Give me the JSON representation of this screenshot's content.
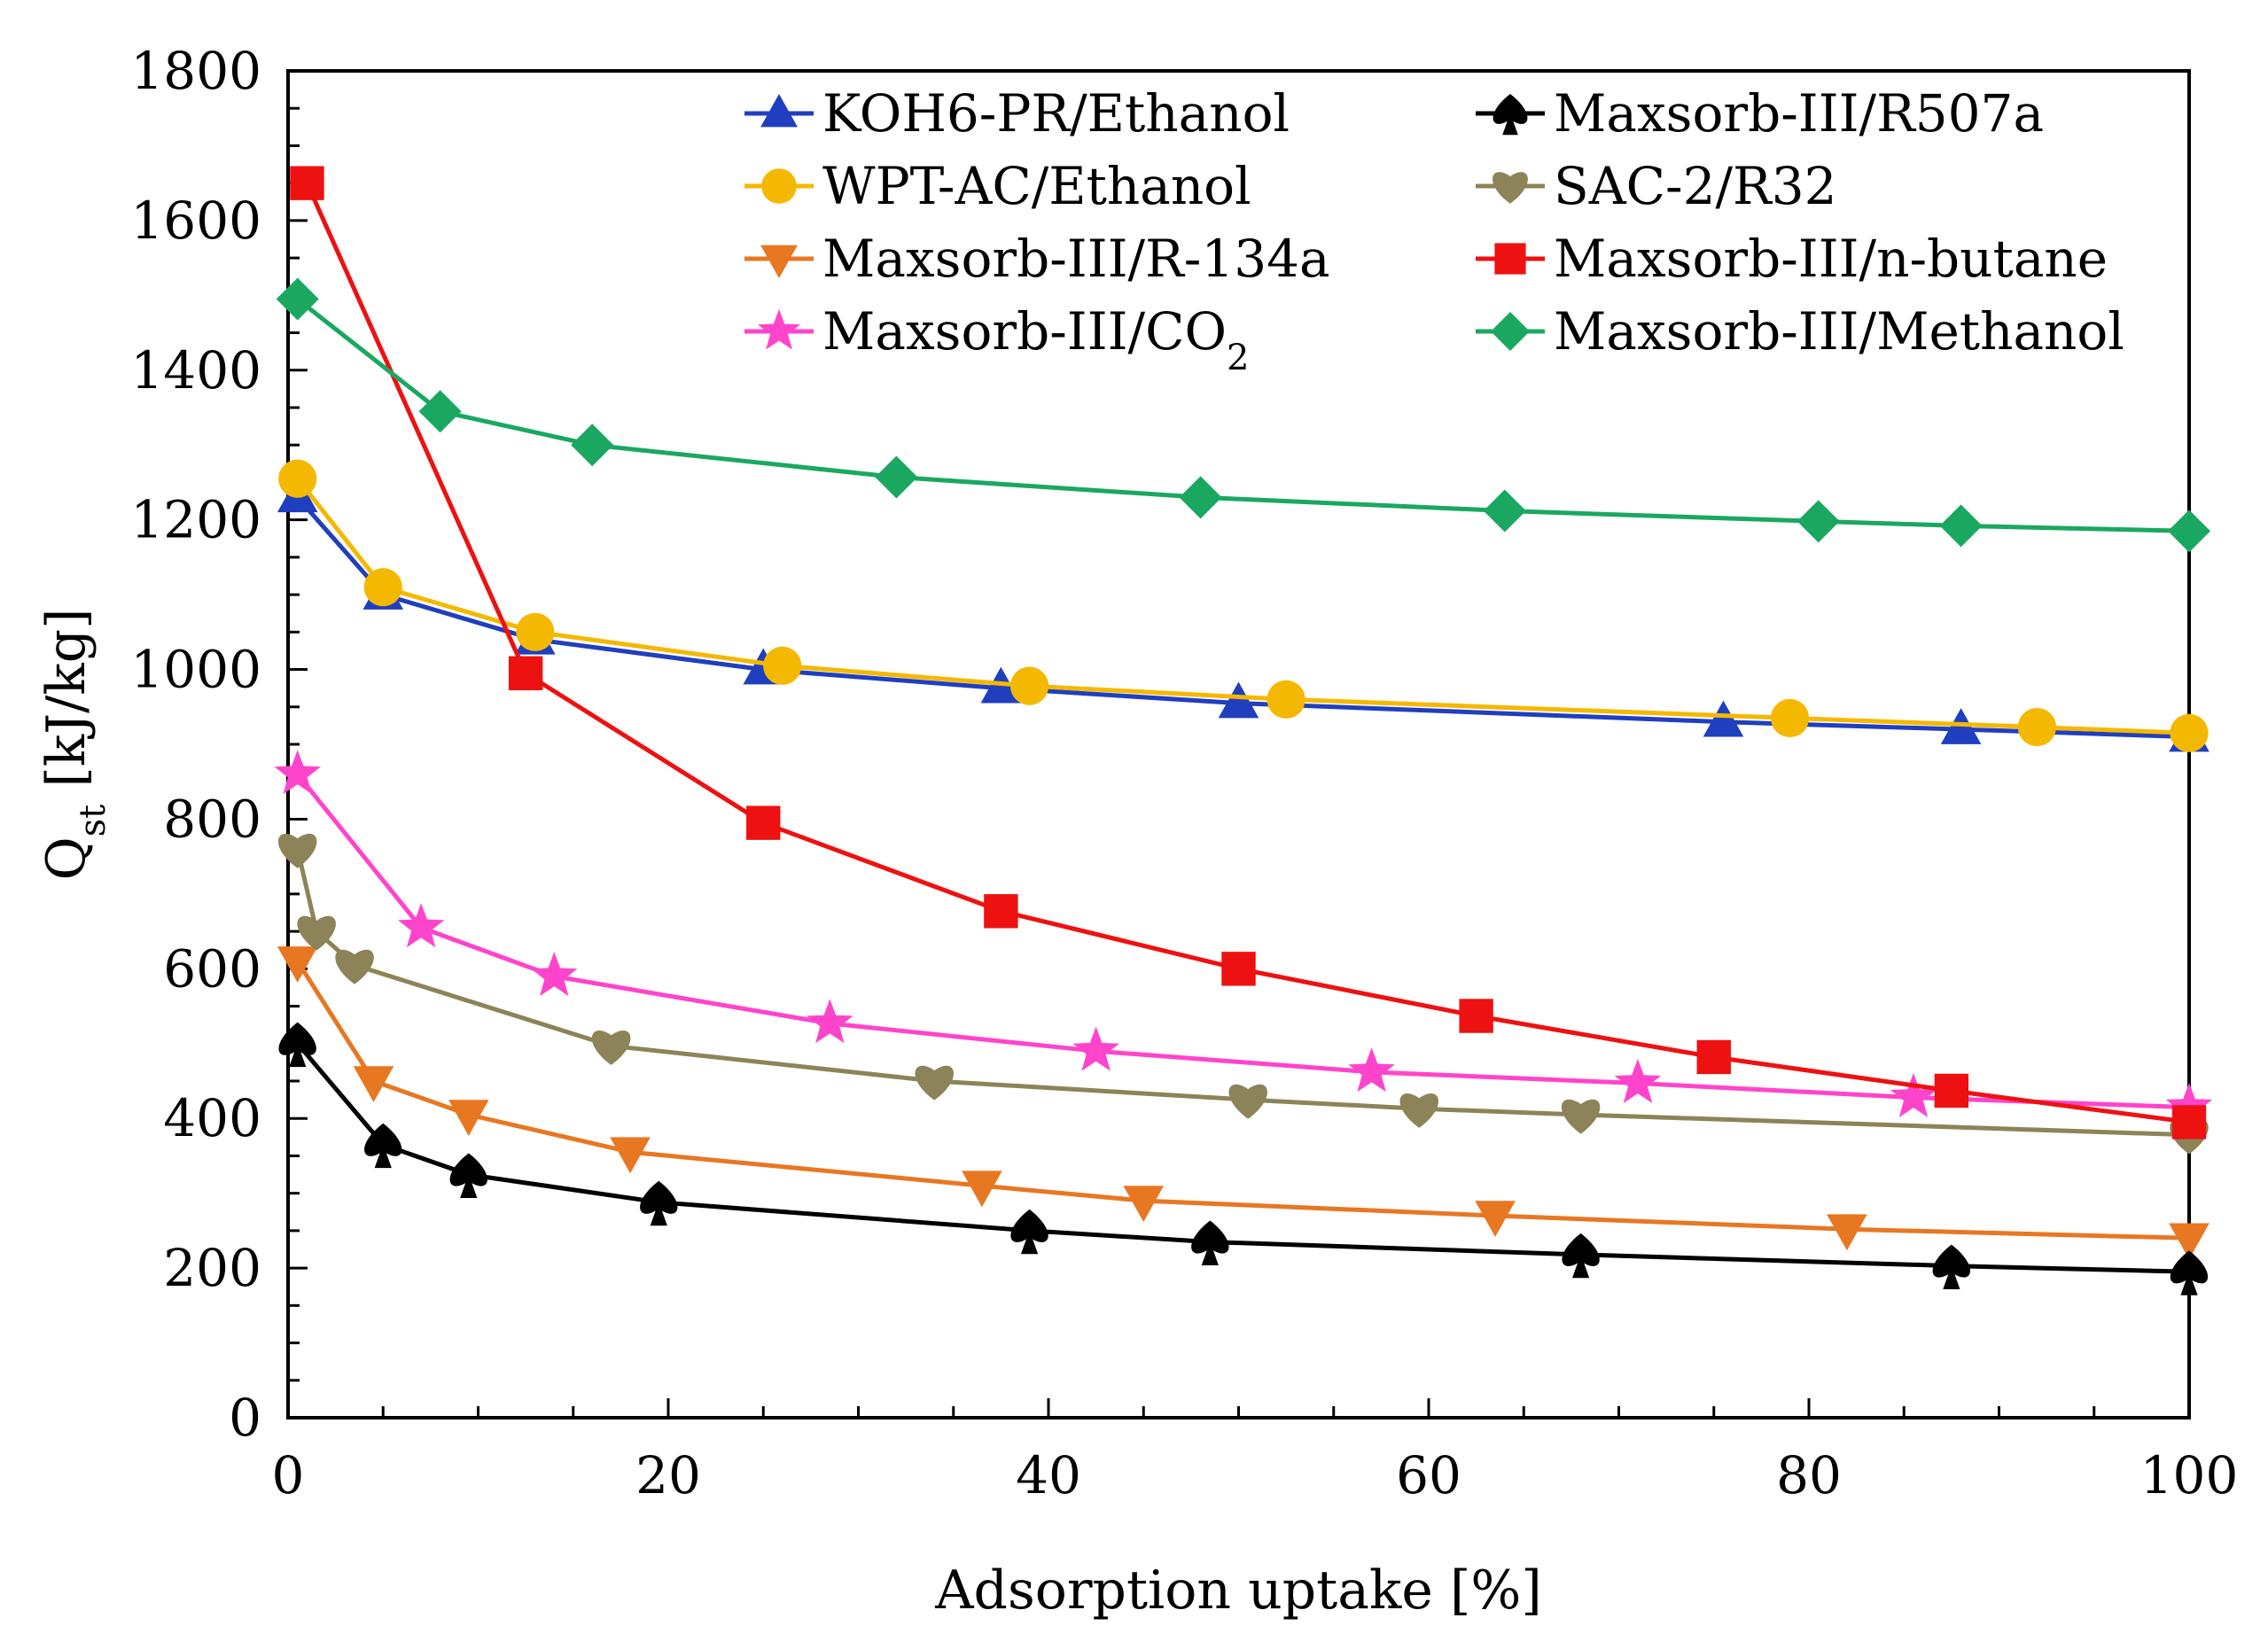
{
  "chart_data": {
    "type": "line",
    "xlabel": "Adsorption uptake [%]",
    "ylabel_main": "Q",
    "ylabel_sub": "st",
    "ylabel_unit": " [kJ/kg]",
    "xlim": [
      0,
      100
    ],
    "ylim": [
      0,
      1800
    ],
    "x_ticks": [
      0,
      20,
      40,
      60,
      80,
      100
    ],
    "y_ticks": [
      0,
      200,
      400,
      600,
      800,
      1000,
      1200,
      1400,
      1600,
      1800
    ],
    "x_minor_step": 5,
    "y_minor_step": 50,
    "grid": false,
    "legend_position": "top-right",
    "series": [
      {
        "name": "KOH6-PR/Ethanol",
        "color": "#1f3fbf",
        "marker": "triangle-up",
        "points": [
          [
            0.5,
            1230
          ],
          [
            5,
            1100
          ],
          [
            13,
            1040
          ],
          [
            25,
            1000
          ],
          [
            37.5,
            975
          ],
          [
            50,
            955
          ],
          [
            75.5,
            930
          ],
          [
            88,
            920
          ],
          [
            100,
            910
          ]
        ]
      },
      {
        "name": "WPT-AC/Ethanol",
        "color": "#f5b800",
        "marker": "circle",
        "points": [
          [
            0.5,
            1255
          ],
          [
            5,
            1110
          ],
          [
            13,
            1050
          ],
          [
            26,
            1005
          ],
          [
            39,
            978
          ],
          [
            52.5,
            960
          ],
          [
            79,
            935
          ],
          [
            92,
            923
          ],
          [
            100,
            915
          ]
        ]
      },
      {
        "name": "Maxsorb-III/R-134a",
        "color": "#e87722",
        "marker": "triangle-down",
        "points": [
          [
            0.5,
            610
          ],
          [
            4.5,
            450
          ],
          [
            9.5,
            405
          ],
          [
            18,
            355
          ],
          [
            36.5,
            310
          ],
          [
            45,
            290
          ],
          [
            63.5,
            270
          ],
          [
            82,
            252
          ],
          [
            100,
            240
          ]
        ]
      },
      {
        "name": "Maxsorb-III/CO",
        "name_sub": "2",
        "color": "#ff44cc",
        "marker": "star",
        "points": [
          [
            0.5,
            860
          ],
          [
            7,
            655
          ],
          [
            14,
            590
          ],
          [
            28.5,
            527
          ],
          [
            42.5,
            490
          ],
          [
            57,
            462
          ],
          [
            71,
            447
          ],
          [
            85.5,
            428
          ],
          [
            100,
            415
          ]
        ]
      },
      {
        "name": "Maxsorb-III/R507a",
        "color": "#000000",
        "marker": "spade",
        "points": [
          [
            0.5,
            500
          ],
          [
            5,
            365
          ],
          [
            9.5,
            325
          ],
          [
            19.5,
            288
          ],
          [
            39,
            250
          ],
          [
            48.5,
            235
          ],
          [
            68,
            218
          ],
          [
            87.5,
            203
          ],
          [
            100,
            195
          ]
        ]
      },
      {
        "name": "SAC-2/R32",
        "color": "#8c8458",
        "marker": "heart",
        "points": [
          [
            0.5,
            760
          ],
          [
            1.5,
            650
          ],
          [
            3.5,
            605
          ],
          [
            17,
            497
          ],
          [
            34,
            450
          ],
          [
            50.5,
            425
          ],
          [
            59.5,
            413
          ],
          [
            68,
            405
          ],
          [
            100,
            378
          ]
        ]
      },
      {
        "name": "Maxsorb-III/n-butane",
        "color": "#ee1111",
        "marker": "square",
        "points": [
          [
            1,
            1650
          ],
          [
            12.5,
            995
          ],
          [
            25,
            795
          ],
          [
            37.5,
            677
          ],
          [
            50,
            600
          ],
          [
            62.5,
            537
          ],
          [
            75,
            482
          ],
          [
            87.5,
            437
          ],
          [
            100,
            395
          ]
        ]
      },
      {
        "name": "Maxsorb-III/Methanol",
        "color": "#1aa860",
        "marker": "diamond",
        "points": [
          [
            0.5,
            1495
          ],
          [
            8,
            1345
          ],
          [
            16,
            1300
          ],
          [
            32,
            1257
          ],
          [
            48,
            1230
          ],
          [
            64,
            1212
          ],
          [
            80.5,
            1198
          ],
          [
            88,
            1192
          ],
          [
            100,
            1185
          ]
        ]
      }
    ]
  }
}
